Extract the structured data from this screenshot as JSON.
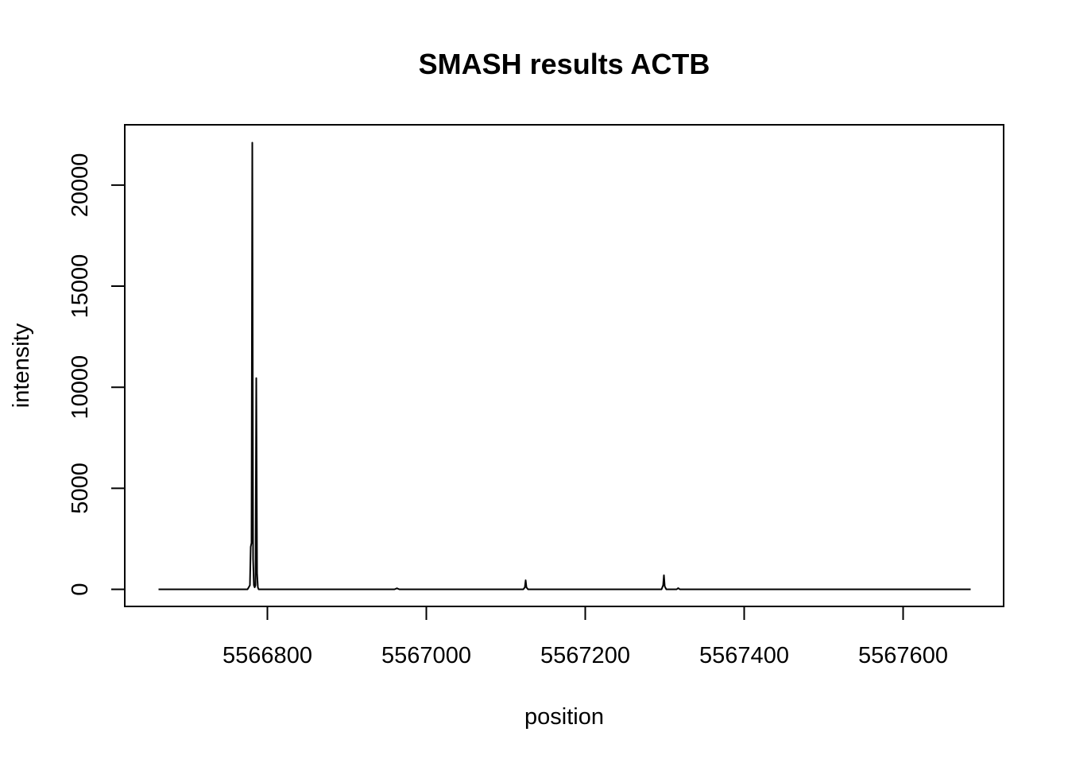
{
  "chart_data": {
    "type": "line",
    "title": "SMASH results ACTB",
    "xlabel": "position",
    "ylabel": "intensity",
    "xlim": [
      5566663,
      5567685
    ],
    "ylim": [
      0,
      22100
    ],
    "x_ticks": [
      5566800,
      5567000,
      5567200,
      5567400,
      5567600
    ],
    "y_ticks": [
      0,
      5000,
      10000,
      15000,
      20000
    ],
    "grid": false,
    "legend": "none",
    "line_color": "#000000",
    "series": [
      {
        "x": [
          5566663,
          5566775,
          5566778,
          5566779,
          5566780,
          5566781,
          5566782,
          5566783,
          5566784,
          5566785,
          5566786,
          5566787,
          5566788,
          5566789,
          5566791,
          5566935,
          5566945,
          5566960,
          5566963,
          5566966,
          5567122,
          5567124,
          5567125,
          5567126,
          5567128,
          5567296,
          5567298,
          5567299,
          5567300,
          5567302,
          5567315,
          5567317,
          5567319,
          5567685
        ],
        "y": [
          0,
          0,
          200,
          2100,
          2300,
          22100,
          1500,
          200,
          100,
          200,
          10450,
          800,
          100,
          0,
          0,
          0,
          0,
          0,
          50,
          0,
          0,
          100,
          450,
          100,
          0,
          0,
          200,
          700,
          150,
          0,
          0,
          60,
          0,
          0
        ]
      }
    ]
  }
}
